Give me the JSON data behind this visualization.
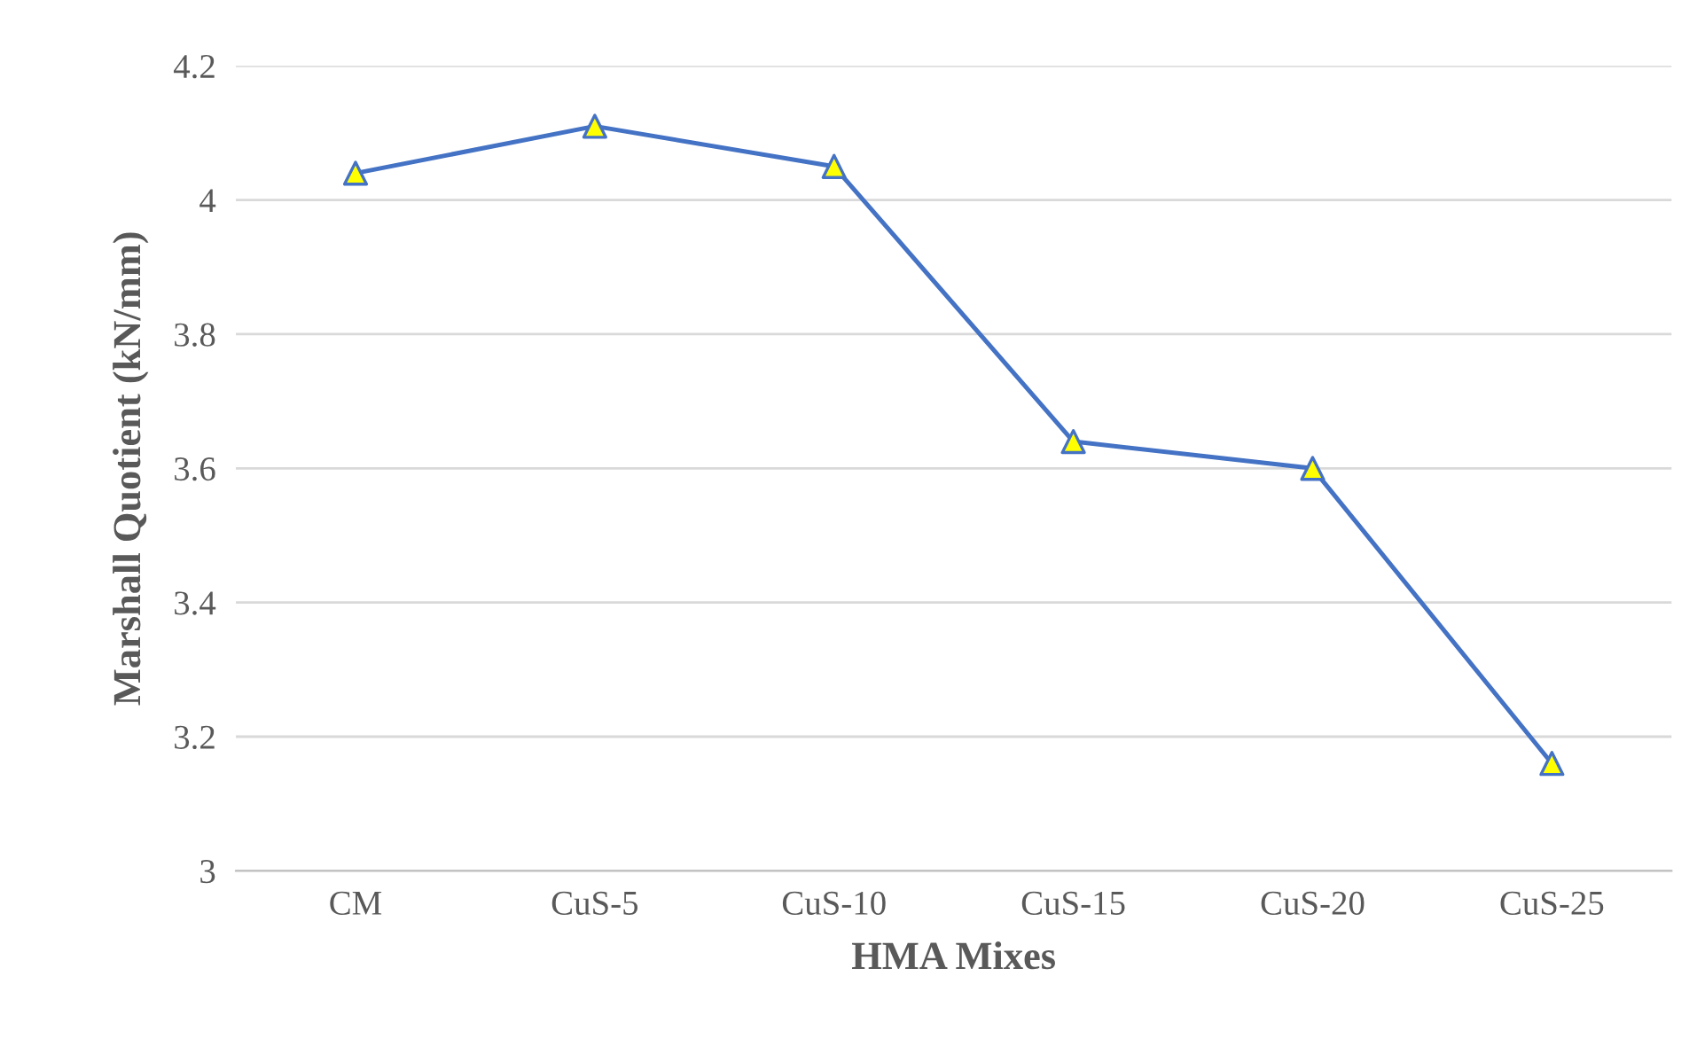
{
  "chart_data": {
    "type": "line",
    "xlabel": "HMA Mixes",
    "ylabel": "Marshall Quotient (kN/mm)",
    "categories": [
      "CM",
      "CuS-5",
      "CuS-10",
      "CuS-15",
      "CuS-20",
      "CuS-25"
    ],
    "series": [
      {
        "color": "#4472c4",
        "colors": [
          "#ffff00",
          "#ffff00",
          "#ffff00",
          "#ffff00",
          "#ffff00",
          "#ffff00"
        ],
        "values": [
          4.04,
          4.11,
          4.05,
          3.64,
          3.6,
          3.16
        ]
      }
    ],
    "ylim": [
      3,
      4.2
    ],
    "yticks": [
      {
        "value": 3,
        "label": "3"
      },
      3.2,
      3.4,
      3.6,
      3.8,
      {
        "value": 4,
        "label": "4"
      },
      4.2
    ],
    "grid": "y",
    "marker": "triangle",
    "line_style": "solid"
  }
}
